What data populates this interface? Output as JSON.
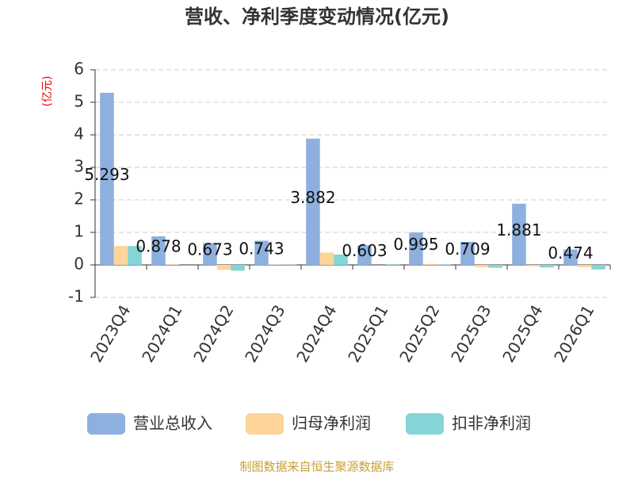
{
  "chart_data": {
    "type": "bar",
    "title": "营收、净利季度变动情况(亿元)",
    "y_label": "(亿元)",
    "categories": [
      "2023Q4",
      "2024Q1",
      "2024Q2",
      "2024Q3",
      "2024Q4",
      "2025Q1",
      "2025Q2",
      "2025Q3",
      "2025Q4",
      "2026Q1"
    ],
    "series": [
      {
        "name": "营业总收入",
        "color": "#8eb0de",
        "data_labels": true,
        "values": [
          5.293,
          0.878,
          0.673,
          0.743,
          3.882,
          0.603,
          0.995,
          0.709,
          1.881,
          0.474
        ]
      },
      {
        "name": "归母净利润",
        "color": "#fdd599",
        "values": [
          0.58,
          0.01,
          -0.15,
          0.01,
          0.38,
          0.0,
          0.03,
          -0.07,
          -0.05,
          -0.07
        ]
      },
      {
        "name": "扣非净利润",
        "color": "#85d4d6",
        "values": [
          0.58,
          0.0,
          -0.18,
          0.01,
          0.32,
          0.02,
          0.01,
          -0.09,
          -0.08,
          -0.14
        ]
      }
    ],
    "ylim": [
      -1,
      6
    ],
    "yticks": [
      -1,
      0,
      1,
      2,
      3,
      4,
      5,
      6
    ],
    "grid": true
  },
  "source": "制图数据来自恒生聚源数据库"
}
